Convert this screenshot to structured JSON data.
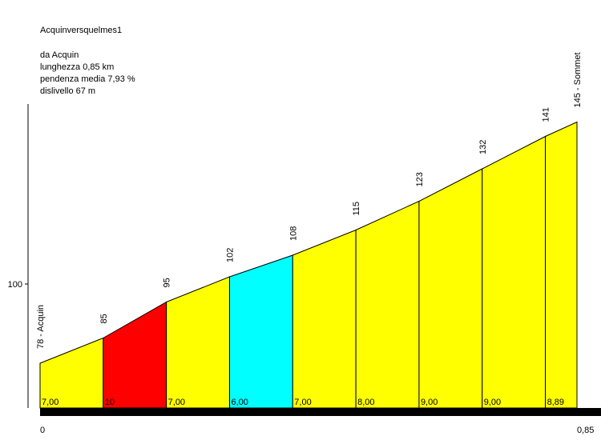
{
  "chart_data": {
    "type": "area",
    "title": "Acquinversquelmes1",
    "info_lines": [
      "da Acquin",
      "lunghezza 0,85 km",
      "pendenza media 7,93 %",
      "dislivello 67 m"
    ],
    "x": [
      0,
      0.1,
      0.2,
      0.3,
      0.4,
      0.5,
      0.6,
      0.7,
      0.8,
      0.85
    ],
    "altitudes": [
      78,
      85,
      95,
      102,
      108,
      115,
      123,
      132,
      141,
      145
    ],
    "point_labels": [
      "78 - Acquin",
      "85",
      "95",
      "102",
      "108",
      "115",
      "123",
      "132",
      "141",
      "145 - Sommet"
    ],
    "segment_gradients": [
      "7,00",
      "10",
      "7,00",
      "6,00",
      "7,00",
      "8,00",
      "9,00",
      "9,00",
      "8,89"
    ],
    "segment_colors": [
      "#ffff00",
      "#ff0000",
      "#ffff00",
      "#00ffff",
      "#ffff00",
      "#ffff00",
      "#ffff00",
      "#ffff00",
      "#ffff00"
    ],
    "x_start_label": "0",
    "x_end_label": "0,85",
    "y_tick_value": 100,
    "y_tick_label": "100",
    "xlim": [
      0,
      0.85
    ],
    "ylim_bottom": 60
  }
}
